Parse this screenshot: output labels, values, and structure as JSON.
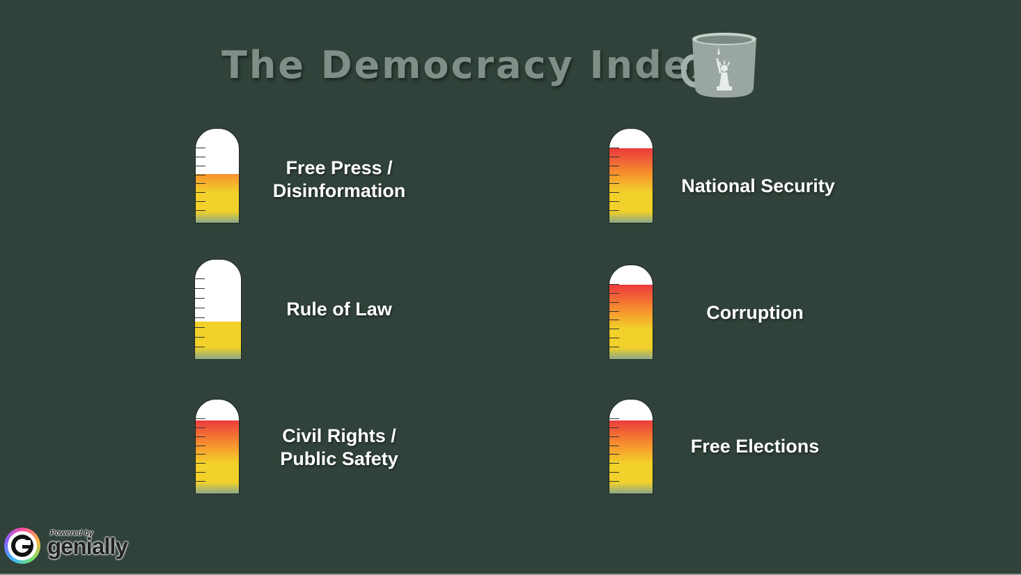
{
  "title": "The Democracy Index",
  "icons": {
    "mug": "coffee-mug-statue-of-liberty-icon",
    "brand": "genially-logo-icon"
  },
  "colors": {
    "background": "#304239",
    "gauge_bottom": "#8aa789",
    "gauge_yellow": "#f1d12a",
    "gauge_orange": "#f7922e",
    "gauge_red": "#ec3c3c"
  },
  "gauges": [
    {
      "label_lines": [
        "Free Press /",
        "Disinformation"
      ],
      "level": 0.52
    },
    {
      "label_lines": [
        "Rule of Law"
      ],
      "level": 0.38
    },
    {
      "label_lines": [
        "Civil Rights /",
        "Public Safety"
      ],
      "level": 0.78
    },
    {
      "label_lines": [
        "National Security"
      ],
      "level": 0.79
    },
    {
      "label_lines": [
        "Corruption"
      ],
      "level": 0.79
    },
    {
      "label_lines": [
        "Free Elections"
      ],
      "level": 0.78
    }
  ],
  "branding": {
    "powered_by": "Powered by",
    "name": "genially"
  }
}
